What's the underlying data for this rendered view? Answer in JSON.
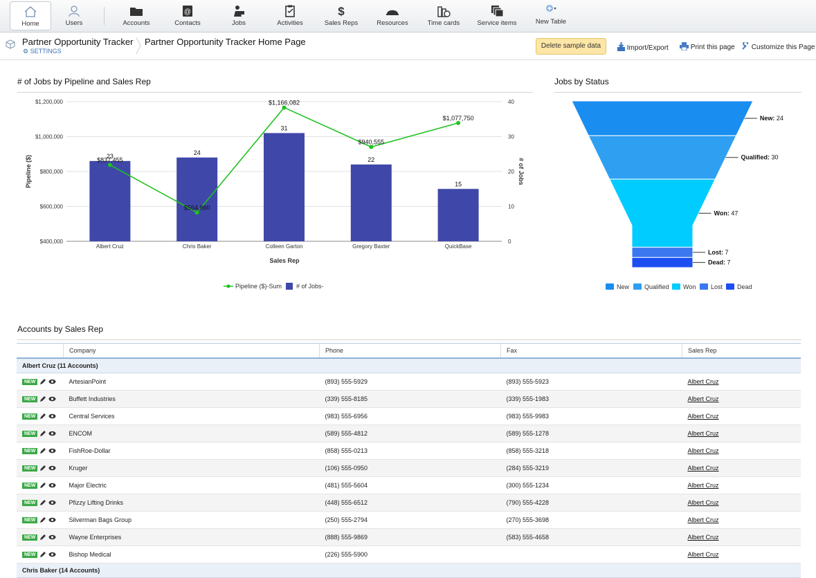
{
  "nav": {
    "items": [
      {
        "label": "Home",
        "icon": "home-icon"
      },
      {
        "label": "Users",
        "icon": "users-icon"
      },
      {
        "label": "Accounts",
        "icon": "folder-icon"
      },
      {
        "label": "Contacts",
        "icon": "contacts-icon"
      },
      {
        "label": "Jobs",
        "icon": "jobs-icon"
      },
      {
        "label": "Activities",
        "icon": "clipboard-icon"
      },
      {
        "label": "Sales Reps",
        "icon": "dollar-icon"
      },
      {
        "label": "Resources",
        "icon": "resources-icon"
      },
      {
        "label": "Time cards",
        "icon": "timecards-icon"
      },
      {
        "label": "Service items",
        "icon": "stack-icon"
      },
      {
        "label": "New Table",
        "icon": "add-table-icon"
      }
    ]
  },
  "header": {
    "app_name": "Partner Opportunity Tracker",
    "settings": "SETTINGS",
    "page_title": "Partner Opportunity Tracker Home Page",
    "delete_sample": "Delete sample data",
    "import_export": "Import/Export",
    "print": "Print this page",
    "customize": "Customize this Page"
  },
  "bar_chart_title": "# of Jobs by Pipeline and Sales Rep",
  "funnel_title": "Jobs by Status",
  "table_title": "Accounts by Sales Rep",
  "chart_data": [
    {
      "type": "bar",
      "title": "# of Jobs by Pipeline and Sales Rep",
      "xlabel": "Sales Rep",
      "ylabel": "Pipeline ($)",
      "y2label": "# of Jobs",
      "ylim": [
        400000,
        1200000
      ],
      "y2lim": [
        0,
        40
      ],
      "yticks": [
        "$1,200,000",
        "$1,000,000",
        "$800,000",
        "$600,000",
        "$400,000"
      ],
      "y2ticks": [
        "40",
        "30",
        "20",
        "10",
        "0"
      ],
      "categories": [
        "Albert Cruz",
        "Chris Baker",
        "Colleen Garton",
        "Gregory Baxter",
        "QuickBase"
      ],
      "series": [
        {
          "name": "Pipeline ($)-Sum",
          "kind": "line",
          "color": "#1fc21f",
          "axis": "left",
          "values": [
            837455,
            564860,
            1166082,
            940555,
            1077750
          ],
          "labels": [
            "$837,455",
            "$564,860",
            "$1,166,082",
            "$940,555",
            "$1,077,750"
          ]
        },
        {
          "name": "# of Jobs-",
          "kind": "bar",
          "color": "#3f48a8",
          "axis": "right",
          "values": [
            23,
            24,
            31,
            22,
            15
          ]
        }
      ],
      "legend": "bottom"
    },
    {
      "type": "funnel",
      "title": "Jobs by Status",
      "stages": [
        {
          "name": "New",
          "value": 24,
          "color": "#1a8ef0"
        },
        {
          "name": "Qualified",
          "value": 30,
          "color": "#2f9ff2"
        },
        {
          "name": "Won",
          "value": 47,
          "color": "#00ccff"
        },
        {
          "name": "Lost",
          "value": 7,
          "color": "#3b78f0"
        },
        {
          "name": "Dead",
          "value": 7,
          "color": "#1d4ef2"
        }
      ],
      "legend": "bottom"
    }
  ],
  "table": {
    "columns": [
      "Company",
      "Phone",
      "Fax",
      "Sales Rep"
    ],
    "new_badge": "NEW",
    "groups": [
      {
        "label": "Albert Cruz  (11 Accounts)",
        "rows": [
          {
            "company": "ArtesianPoint",
            "phone": "(893) 555-5929",
            "fax": "(893) 555-5923",
            "rep": "Albert Cruz"
          },
          {
            "company": "Buffett Industries",
            "phone": "(339) 555-8185",
            "fax": "(339) 555-1983",
            "rep": "Albert Cruz"
          },
          {
            "company": "Central Services",
            "phone": "(983) 555-6956",
            "fax": "(983) 555-9983",
            "rep": "Albert Cruz"
          },
          {
            "company": "ENCOM",
            "phone": "(589) 555-4812",
            "fax": "(589) 555-1278",
            "rep": "Albert Cruz"
          },
          {
            "company": "FishRoe-Dollar",
            "phone": "(858) 555-0213",
            "fax": "(858) 555-3218",
            "rep": "Albert Cruz"
          },
          {
            "company": "Kruger",
            "phone": "(106) 555-0950",
            "fax": "(284) 555-3219",
            "rep": "Albert Cruz"
          },
          {
            "company": "Major Electric",
            "phone": "(481) 555-5604",
            "fax": "(300) 555-1234",
            "rep": "Albert Cruz"
          },
          {
            "company": "Pfizzy Lifting Drinks",
            "phone": "(448) 555-6512",
            "fax": "(790) 555-4228",
            "rep": "Albert Cruz"
          },
          {
            "company": "Silverman Bags Group",
            "phone": "(250) 555-2794",
            "fax": "(270) 555-3698",
            "rep": "Albert Cruz"
          },
          {
            "company": "Wayne Enterprises",
            "phone": "(888) 555-9869",
            "fax": "(583) 555-4658",
            "rep": "Albert Cruz"
          },
          {
            "company": "Bishop Medical",
            "phone": "(226) 555-5900",
            "fax": "",
            "rep": "Albert Cruz"
          }
        ]
      },
      {
        "label": "Chris Baker  (14 Accounts)",
        "rows": []
      }
    ]
  }
}
